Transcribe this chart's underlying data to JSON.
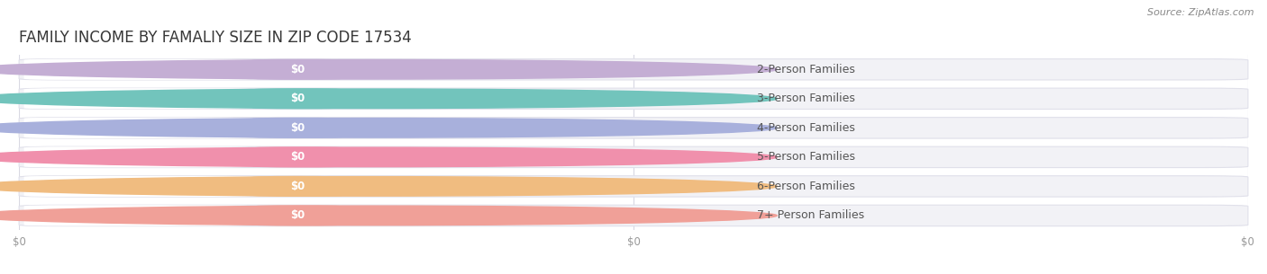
{
  "title": "FAMILY INCOME BY FAMALIY SIZE IN ZIP CODE 17534",
  "source": "Source: ZipAtlas.com",
  "categories": [
    "2-Person Families",
    "3-Person Families",
    "4-Person Families",
    "5-Person Families",
    "6-Person Families",
    "7+ Person Families"
  ],
  "values": [
    0,
    0,
    0,
    0,
    0,
    0
  ],
  "bar_colors": [
    "#c4aed4",
    "#72c4bc",
    "#a8b0dc",
    "#f090ac",
    "#f0bc80",
    "#f0a098"
  ],
  "bar_bg_color": "#f2f2f6",
  "value_label": "$0",
  "background_color": "#ffffff",
  "bar_height": 0.72,
  "xlim": [
    0,
    1
  ],
  "title_fontsize": 12,
  "label_fontsize": 9,
  "value_fontsize": 8.5,
  "source_fontsize": 8,
  "tick_fontsize": 8.5,
  "grid_color": "#d8d8e2",
  "label_text_color": "#555555",
  "tick_color": "#999999"
}
